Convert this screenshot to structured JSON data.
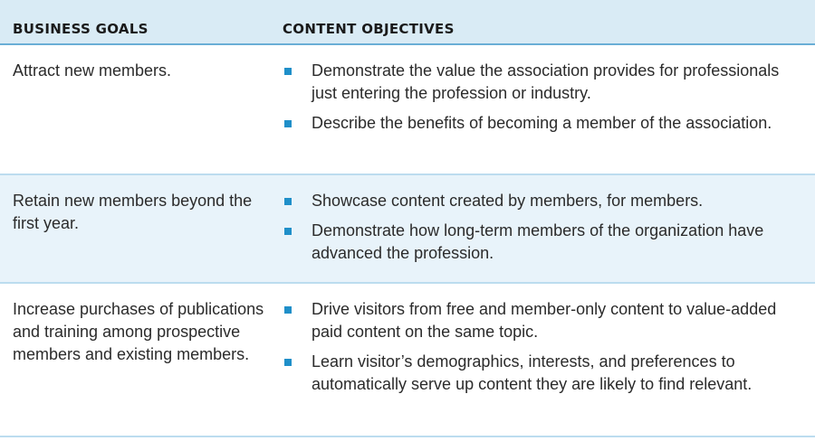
{
  "table": {
    "headers": {
      "goals": "BUSINESS GOALS",
      "objectives": "CONTENT OBJECTIVES"
    },
    "rows": [
      {
        "goal": "Attract new members.",
        "objectives": [
          "Demonstrate the value the association provides for professionals just entering the profession or industry.",
          "Describe the benefits of becoming a member of the association."
        ]
      },
      {
        "goal": "Retain new members beyond the first year.",
        "objectives": [
          "Showcase content created by members, for members.",
          "Demonstrate how long-term members of the organization have advanced the profession."
        ]
      },
      {
        "goal": "Increase purchases of publications and training among prospective members and existing members.",
        "objectives": [
          "Drive visitors from free and member-only content to value-added paid content on the same topic.",
          "Learn visitor’s demographics, interests, and preferences to automatically serve up content they are likely to find relevant."
        ]
      }
    ]
  },
  "colors": {
    "header_bg": "#d9ebf5",
    "alt_row_bg": "#e8f3fa",
    "bullet": "#1f8fc9",
    "rule": "#6aaed6"
  }
}
